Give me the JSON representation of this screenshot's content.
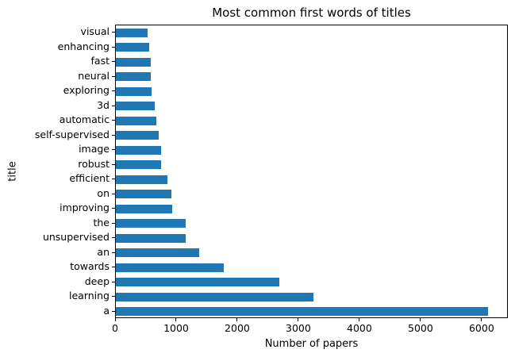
{
  "chart_data": {
    "type": "bar",
    "orientation": "horizontal",
    "title": "Most common first words of titles",
    "xlabel": "Number of papers",
    "ylabel": "title",
    "categories": [
      "visual",
      "enhancing",
      "fast",
      "neural",
      "exploring",
      "3d",
      "automatic",
      "self-supervised",
      "image",
      "robust",
      "efficient",
      "on",
      "improving",
      "the",
      "unsupervised",
      "an",
      "towards",
      "deep",
      "learning",
      "a"
    ],
    "values": [
      520,
      545,
      570,
      580,
      585,
      640,
      660,
      710,
      740,
      740,
      845,
      910,
      920,
      1145,
      1150,
      1365,
      1780,
      2690,
      3250,
      6120
    ],
    "xlim": [
      0,
      6430
    ],
    "xticks": [
      0,
      1000,
      2000,
      3000,
      4000,
      5000,
      6000
    ],
    "xtick_labels": [
      "0",
      "1000",
      "2000",
      "3000",
      "4000",
      "5000",
      "6000"
    ],
    "grid": false,
    "legend": "none",
    "bar_color": "#1f77b4",
    "background_color": "#ffffff",
    "spine_color": "#000000",
    "text_color": "#000000"
  }
}
